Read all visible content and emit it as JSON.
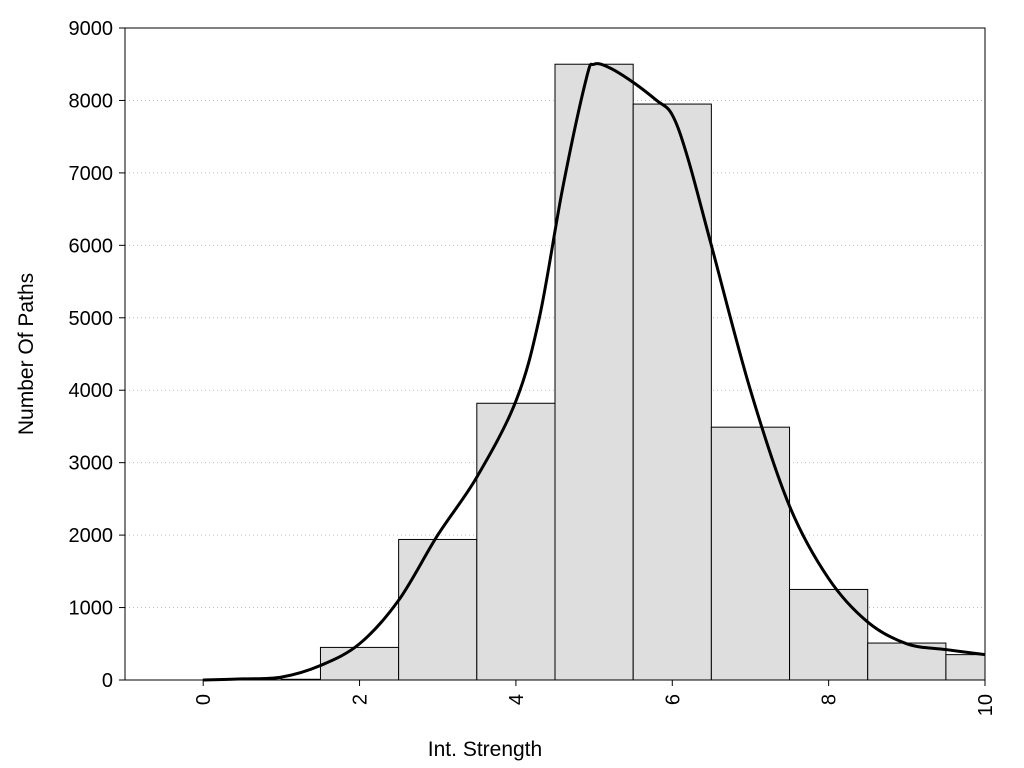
{
  "chart_data": {
    "type": "bar",
    "title": "",
    "xlabel": "Int. Strength",
    "ylabel": "Number Of Paths",
    "xlim": [
      -1,
      10
    ],
    "ylim": [
      0,
      9000
    ],
    "xticks": [
      0,
      2,
      4,
      6,
      8,
      10
    ],
    "yticks": [
      0,
      1000,
      2000,
      3000,
      4000,
      5000,
      6000,
      7000,
      8000,
      9000
    ],
    "grid": "y-dotted",
    "colors": {
      "bar_fill": "#dedede",
      "bar_edge": "#000000",
      "curve": "#000000"
    },
    "bars": [
      {
        "x0": 0.0,
        "x1": 1.0,
        "value": 10
      },
      {
        "x0": 0.5,
        "x1": 1.0,
        "value": 20
      },
      {
        "x0": 1.0,
        "x1": 1.5,
        "value": 10
      },
      {
        "x0": 1.5,
        "x1": 2.5,
        "value": 450
      },
      {
        "x0": 2.5,
        "x1": 3.5,
        "value": 1940
      },
      {
        "x0": 3.5,
        "x1": 4.5,
        "value": 3820
      },
      {
        "x0": 4.5,
        "x1": 5.5,
        "value": 8500
      },
      {
        "x0": 5.5,
        "x1": 6.5,
        "value": 7950
      },
      {
        "x0": 6.5,
        "x1": 7.5,
        "value": 3490
      },
      {
        "x0": 7.5,
        "x1": 8.5,
        "value": 1250
      },
      {
        "x0": 8.5,
        "x1": 9.5,
        "value": 510
      },
      {
        "x0": 9.5,
        "x1": 10.0,
        "value": 350
      }
    ],
    "curve": {
      "x": [
        0,
        0.5,
        1.0,
        1.5,
        2.0,
        2.5,
        3.0,
        3.5,
        4.0,
        4.3,
        4.6,
        4.9,
        5.0,
        5.2,
        5.5,
        5.8,
        6.0,
        6.2,
        6.5,
        7.0,
        7.5,
        8.0,
        8.5,
        9.0,
        9.5,
        10.0
      ],
      "y": [
        0,
        15,
        40,
        200,
        500,
        1100,
        2000,
        2800,
        3850,
        5000,
        6800,
        8300,
        8500,
        8450,
        8250,
        8000,
        7800,
        7200,
        6000,
        4000,
        2400,
        1400,
        800,
        500,
        420,
        350
      ]
    }
  }
}
